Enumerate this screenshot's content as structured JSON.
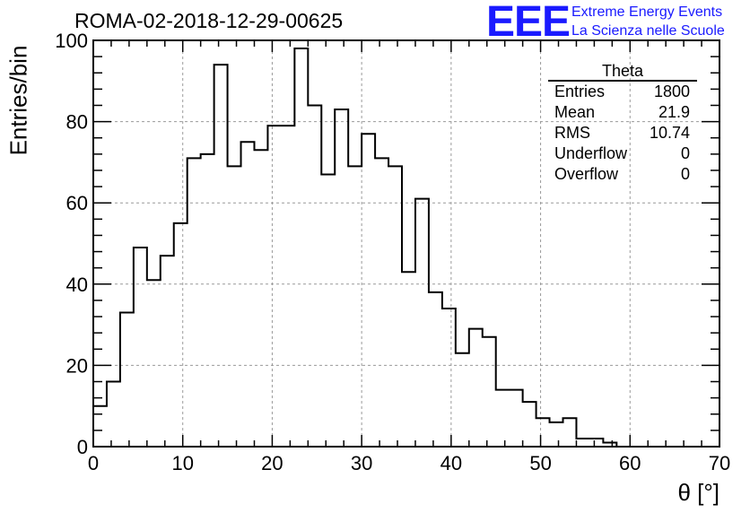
{
  "title": "ROMA-02-2018-12-29-00625",
  "logo": {
    "mark": "EEE",
    "line1": "Extreme Energy Events",
    "line2": "La Scienza nelle Scuole"
  },
  "stats": {
    "title": "Theta",
    "rows": [
      {
        "label": "Entries",
        "value": "1800"
      },
      {
        "label": "Mean",
        "value": "21.9"
      },
      {
        "label": "RMS",
        "value": "10.74"
      },
      {
        "label": "Underflow",
        "value": "0"
      },
      {
        "label": "Overflow",
        "value": "0"
      }
    ]
  },
  "chart_data": {
    "type": "histogram",
    "title": "ROMA-02-2018-12-29-00625",
    "xlabel": "θ [°]",
    "ylabel": "Entries/bin",
    "xlim": [
      0,
      70
    ],
    "ylim": [
      0,
      100
    ],
    "bin_width": 1.5,
    "bin_start": 0,
    "x_ticks": [
      0,
      10,
      20,
      30,
      40,
      50,
      60,
      70
    ],
    "y_ticks": [
      0,
      20,
      40,
      60,
      80,
      100
    ],
    "grid": true,
    "values": [
      10,
      16,
      33,
      49,
      41,
      47,
      55,
      71,
      72,
      94,
      69,
      75,
      73,
      79,
      79,
      98,
      84,
      67,
      83,
      69,
      77,
      71,
      69,
      43,
      61,
      38,
      34,
      23,
      29,
      27,
      14,
      14,
      11,
      7,
      6,
      7,
      2,
      2,
      1,
      0,
      0,
      0,
      0,
      0,
      0,
      0
    ]
  }
}
